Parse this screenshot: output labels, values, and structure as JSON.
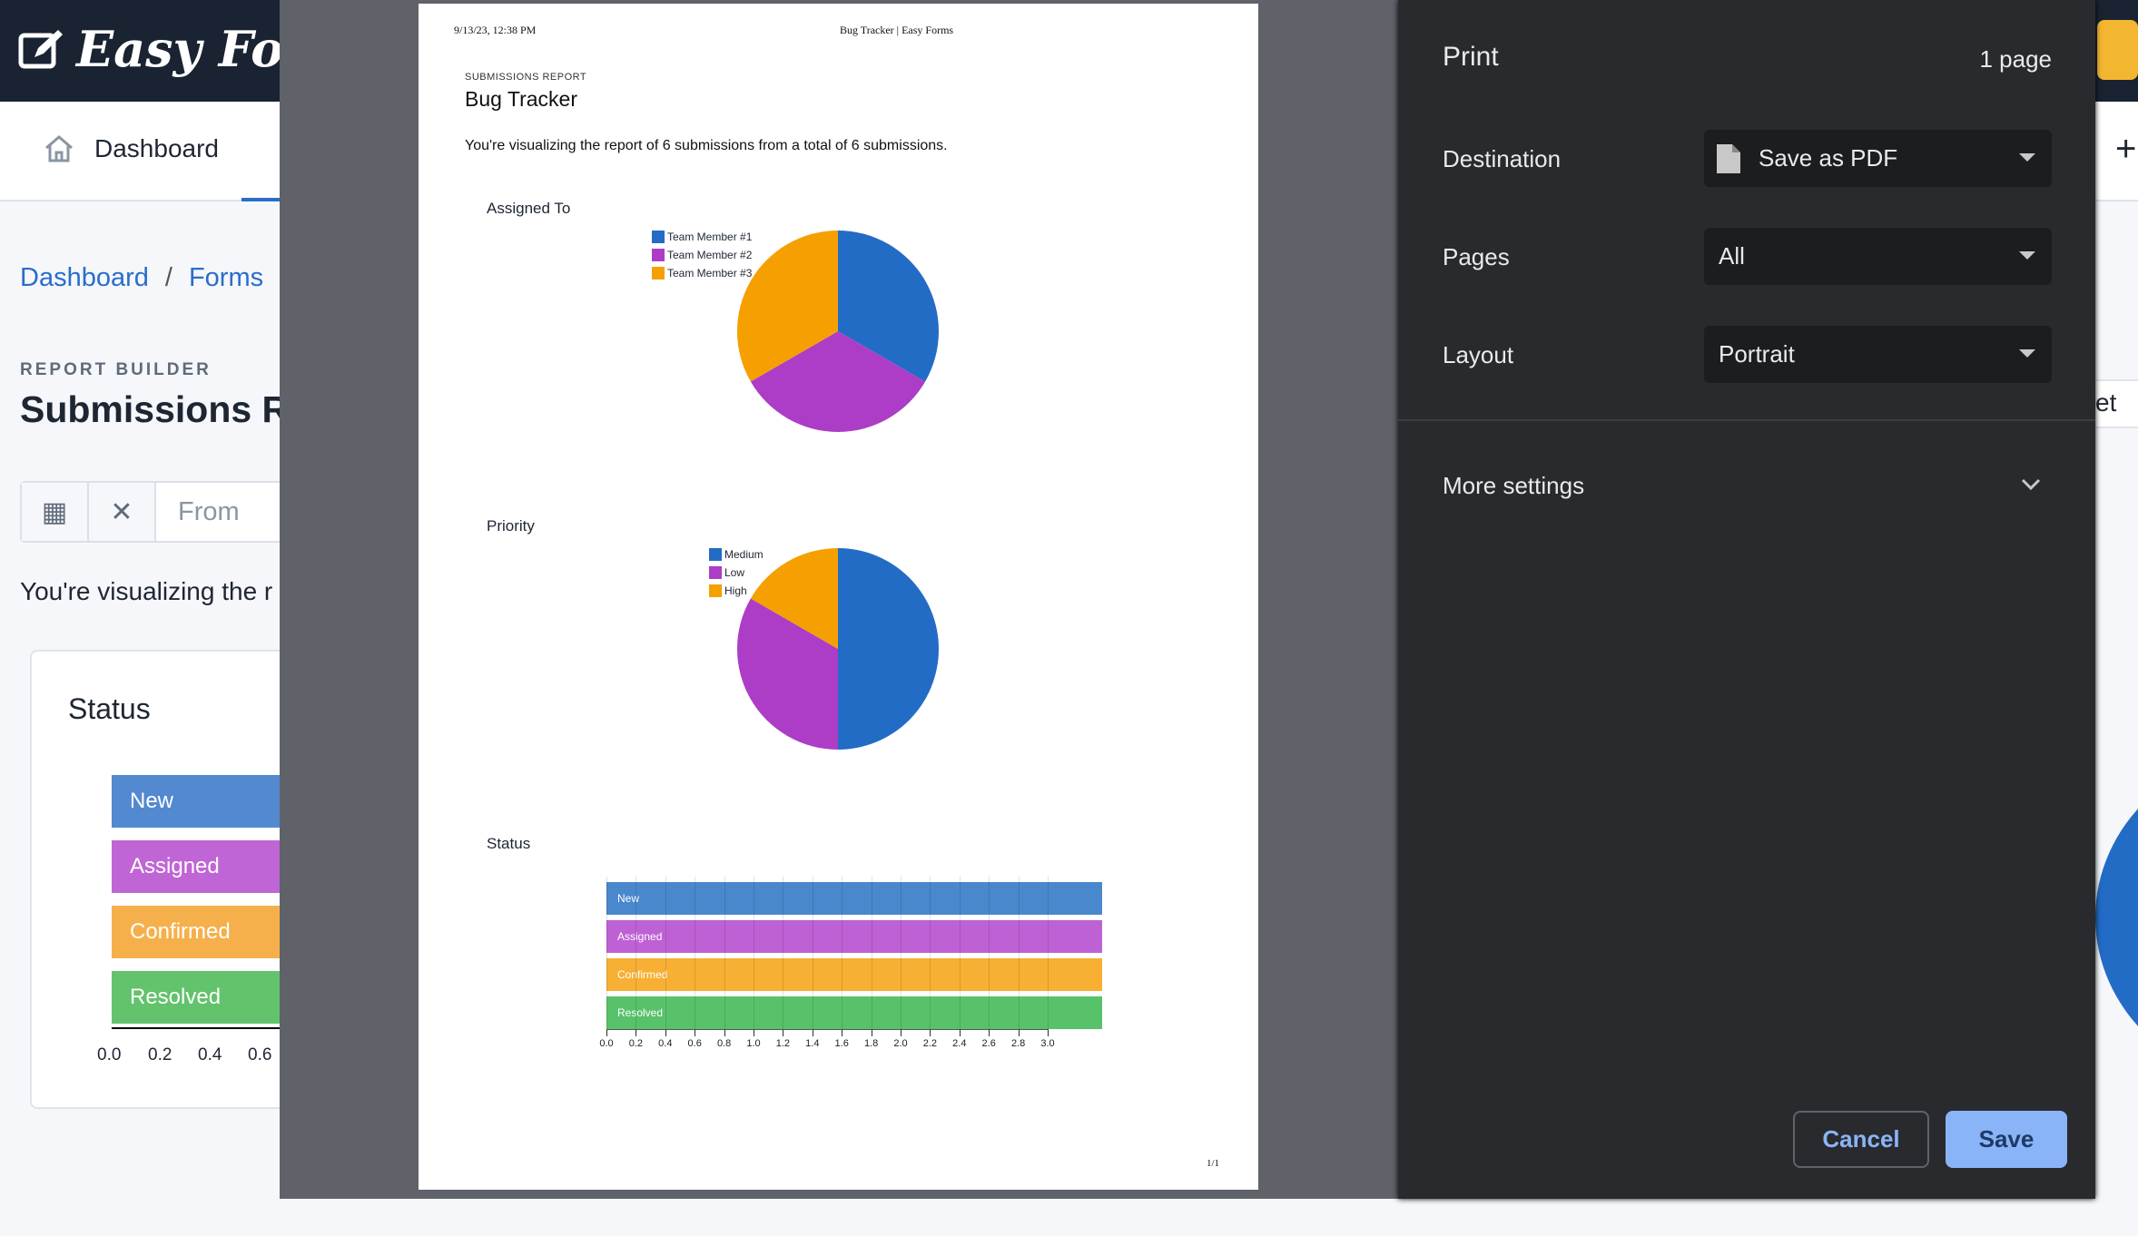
{
  "app": {
    "logo": "Easy Forms",
    "nav_dashboard": "Dashboard",
    "breadcrumb": [
      "Dashboard",
      "Forms"
    ],
    "section_label": "REPORT BUILDER",
    "page_title": "Submissions Re",
    "from_placeholder": "From",
    "visualizing_text": "You're visualizing the r",
    "card_title": "Status",
    "bars": [
      "New",
      "Assigned",
      "Confirmed",
      "Resolved"
    ],
    "ticks": [
      "0.0",
      "0.2",
      "0.4",
      "0.6"
    ],
    "right_partial_text": "et"
  },
  "print_preview": {
    "header_datetime": "9/13/23, 12:38 PM",
    "header_title": "Bug Tracker | Easy Forms",
    "eyebrow": "SUBMISSIONS REPORT",
    "title": "Bug Tracker",
    "description": "You're visualizing the report of 6 submissions from a total of 6 submissions.",
    "page_number": "1/1"
  },
  "chart_data": [
    {
      "type": "pie",
      "title": "Assigned To",
      "categories": [
        "Team Member #1",
        "Team Member #2",
        "Team Member #3"
      ],
      "values": [
        2,
        2,
        2
      ],
      "colors": [
        "#226cc6",
        "#ad3dc6",
        "#f5a000"
      ],
      "legend": "top-left"
    },
    {
      "type": "pie",
      "title": "Priority",
      "categories": [
        "Medium",
        "Low",
        "High"
      ],
      "values": [
        3,
        2,
        1
      ],
      "colors": [
        "#226cc6",
        "#ad3dc6",
        "#f5a000"
      ],
      "legend": "top-left"
    },
    {
      "type": "bar",
      "orientation": "horizontal",
      "title": "Status",
      "categories": [
        "New",
        "Assigned",
        "Confirmed",
        "Resolved"
      ],
      "values": [
        3.37,
        3.37,
        3.37,
        3.37
      ],
      "colors": [
        "#4a88cd",
        "#bd61d4",
        "#f7b033",
        "#57c26a"
      ],
      "xticks": [
        "0.0",
        "0.2",
        "0.4",
        "0.6",
        "0.8",
        "1.0",
        "1.2",
        "1.4",
        "1.6",
        "1.8",
        "2.0",
        "2.2",
        "2.4",
        "2.6",
        "2.8",
        "3.0"
      ],
      "xlim": [
        0,
        3.0
      ],
      "grid": true
    }
  ],
  "print_settings": {
    "title": "Print",
    "page_count": "1 page",
    "destination_label": "Destination",
    "destination_value": "Save as PDF",
    "pages_label": "Pages",
    "pages_value": "All",
    "layout_label": "Layout",
    "layout_value": "Portrait",
    "more_settings": "More settings",
    "cancel": "Cancel",
    "save": "Save",
    "accent": "#8ab4f8"
  }
}
